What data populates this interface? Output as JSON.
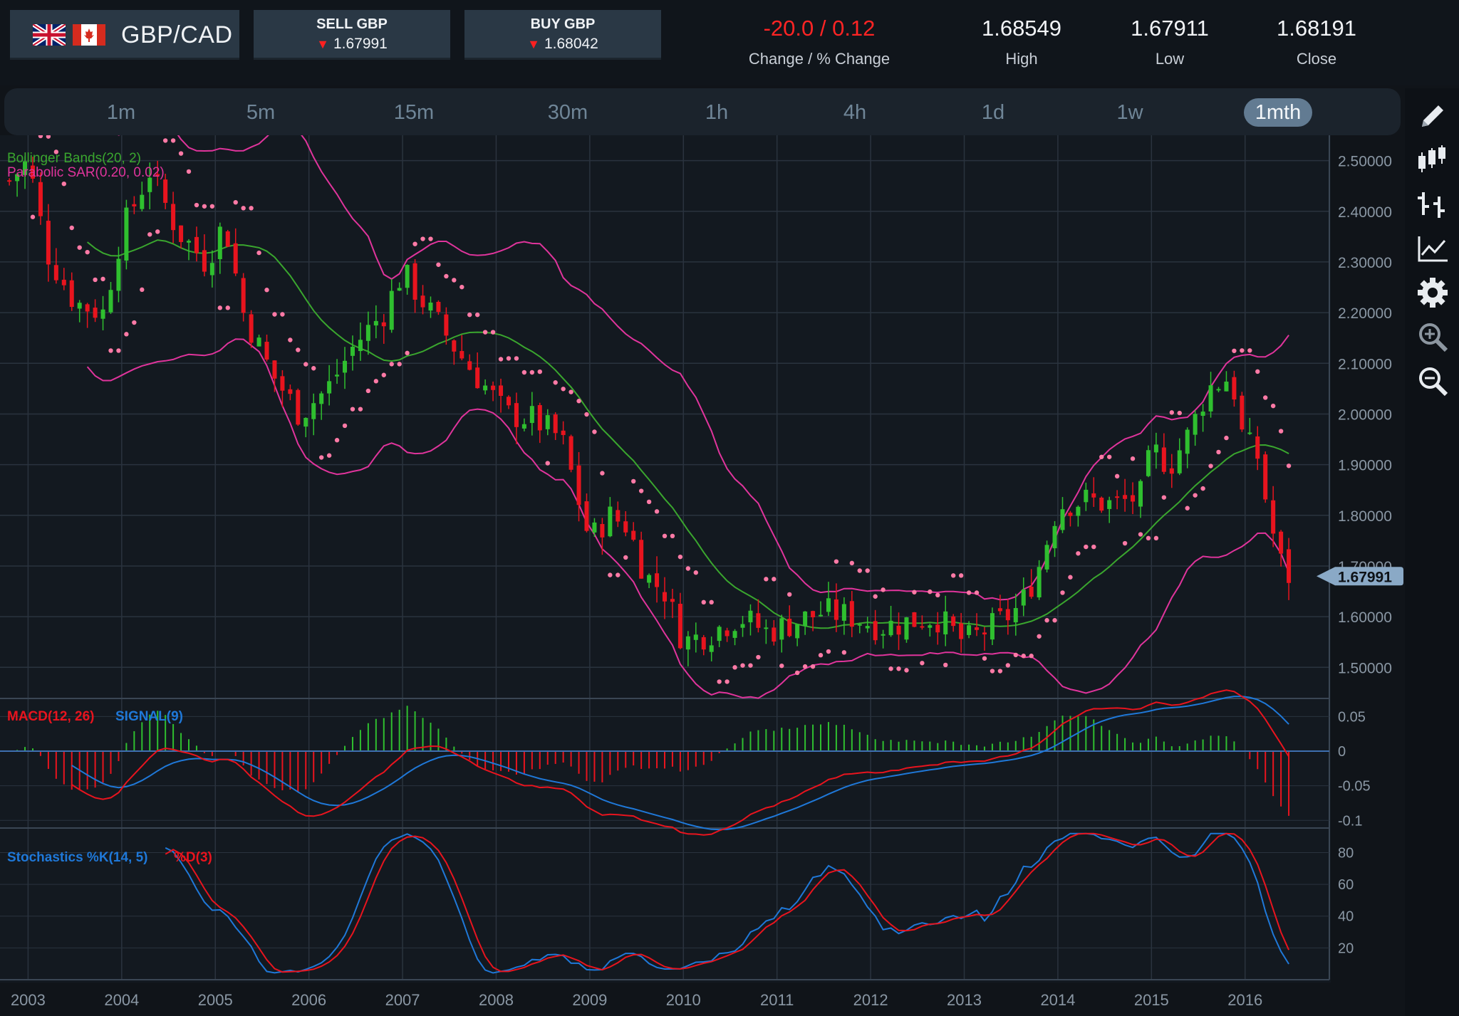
{
  "header": {
    "pair": "GBP/CAD",
    "sell": {
      "title": "SELL GBP",
      "price": "1.67991"
    },
    "buy": {
      "title": "BUY GBP",
      "price": "1.68042"
    },
    "change": {
      "value": "-20.0 / 0.12",
      "label": "Change / % Change"
    },
    "high": {
      "value": "1.68549",
      "label": "High"
    },
    "low": {
      "value": "1.67911",
      "label": "Low"
    },
    "close": {
      "value": "1.68191",
      "label": "Close"
    }
  },
  "timeframes": [
    "1m",
    "5m",
    "15m",
    "30m",
    "1h",
    "4h",
    "1d",
    "1w",
    "1mth"
  ],
  "active_timeframe": "1mth",
  "toolbar": [
    "pencil-icon",
    "candlestick-icon",
    "ohlc-bars-icon",
    "line-chart-icon",
    "gear-icon",
    "zoom-in-icon",
    "zoom-out-icon"
  ],
  "colors": {
    "up": "#2fbf2f",
    "down": "#e8141e",
    "bb_mid": "#3aa62e",
    "bb_band": "#e0349c",
    "sar": "#ff7aa6",
    "macd": "#e8141e",
    "signal": "#1f78d8",
    "grid": "#2a333e",
    "accent": "#627b92"
  },
  "chart_data": [
    {
      "type": "candlestick",
      "title": "",
      "indicators": [
        "Bollinger Bands(20, 2)",
        "Parabolic SAR(0.20, 0.02)"
      ],
      "y_ticks": [
        "2.50000",
        "2.40000",
        "2.30000",
        "2.20000",
        "2.10000",
        "2.00000",
        "1.90000",
        "1.80000",
        "1.70000",
        "1.60000",
        "1.50000"
      ],
      "ylim": [
        1.44,
        2.55
      ],
      "x_ticks": [
        "2003",
        "2004",
        "2005",
        "2006",
        "2007",
        "2008",
        "2009",
        "2010",
        "2011",
        "2012",
        "2013",
        "2014",
        "2015",
        "2016"
      ],
      "xlim": [
        2002.7,
        2016.9
      ],
      "current_price_label": "1.67991",
      "close_trend": [
        [
          2002.8,
          2.46
        ],
        [
          2003.0,
          2.5
        ],
        [
          2003.2,
          2.32
        ],
        [
          2003.5,
          2.22
        ],
        [
          2003.8,
          2.2
        ],
        [
          2004.0,
          2.36
        ],
        [
          2004.3,
          2.48
        ],
        [
          2004.6,
          2.36
        ],
        [
          2004.9,
          2.3
        ],
        [
          2005.1,
          2.38
        ],
        [
          2005.3,
          2.2
        ],
        [
          2005.6,
          2.08
        ],
        [
          2005.9,
          2.0
        ],
        [
          2006.2,
          2.05
        ],
        [
          2006.5,
          2.14
        ],
        [
          2006.8,
          2.2
        ],
        [
          2007.0,
          2.28
        ],
        [
          2007.3,
          2.2
        ],
        [
          2007.6,
          2.12
        ],
        [
          2007.9,
          2.05
        ],
        [
          2008.1,
          2.0
        ],
        [
          2008.4,
          1.99
        ],
        [
          2008.7,
          1.95
        ],
        [
          2009.0,
          1.75
        ],
        [
          2009.2,
          1.8
        ],
        [
          2009.4,
          1.78
        ],
        [
          2009.6,
          1.68
        ],
        [
          2009.8,
          1.65
        ],
        [
          2010.0,
          1.55
        ],
        [
          2010.3,
          1.57
        ],
        [
          2010.6,
          1.6
        ],
        [
          2010.9,
          1.57
        ],
        [
          2011.2,
          1.59
        ],
        [
          2011.5,
          1.61
        ],
        [
          2011.8,
          1.6
        ],
        [
          2012.1,
          1.58
        ],
        [
          2012.4,
          1.59
        ],
        [
          2012.7,
          1.6
        ],
        [
          2013.0,
          1.55
        ],
        [
          2013.3,
          1.58
        ],
        [
          2013.6,
          1.62
        ],
        [
          2013.8,
          1.7
        ],
        [
          2014.0,
          1.82
        ],
        [
          2014.3,
          1.83
        ],
        [
          2014.6,
          1.82
        ],
        [
          2014.9,
          1.84
        ],
        [
          2015.0,
          1.93
        ],
        [
          2015.2,
          1.9
        ],
        [
          2015.4,
          1.96
        ],
        [
          2015.6,
          2.05
        ],
        [
          2015.8,
          2.07
        ],
        [
          2015.9,
          2.04
        ],
        [
          2016.0,
          1.92
        ],
        [
          2016.1,
          1.95
        ],
        [
          2016.2,
          1.85
        ],
        [
          2016.35,
          1.72
        ],
        [
          2016.45,
          1.68
        ]
      ]
    },
    {
      "type": "line",
      "title": "",
      "series": [
        {
          "name": "MACD(12, 26)"
        },
        {
          "name": "SIGNAL(9)"
        }
      ],
      "y_ticks": [
        "0.05",
        "0",
        "-0.05",
        "-0.1"
      ],
      "ylim": [
        -0.11,
        0.075
      ]
    },
    {
      "type": "line",
      "title": "",
      "series": [
        {
          "name": "Stochastics %K(14, 5)"
        },
        {
          "name": "%D(3)"
        }
      ],
      "y_ticks": [
        "80",
        "60",
        "40",
        "20"
      ],
      "ylim": [
        0,
        95
      ]
    }
  ]
}
